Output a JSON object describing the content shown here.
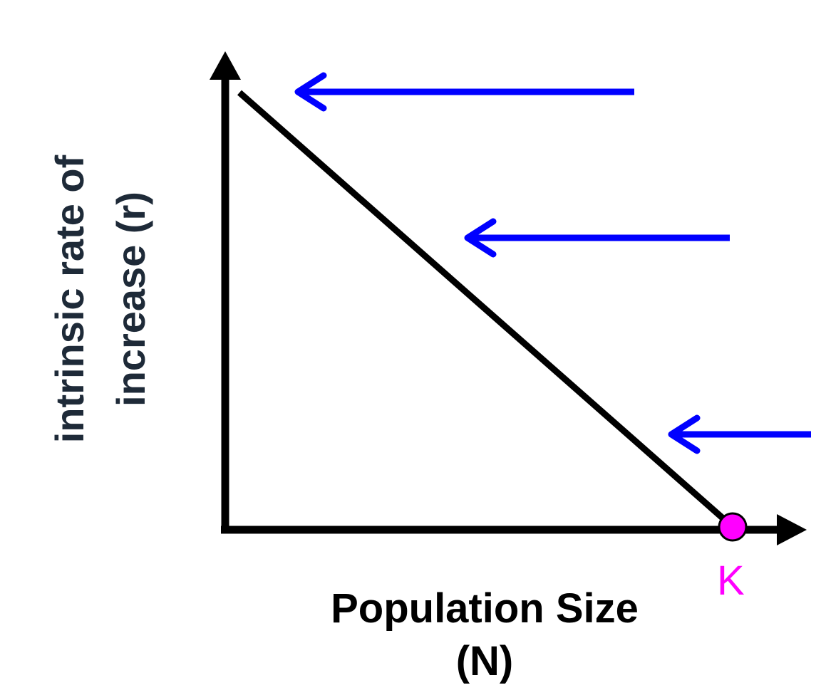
{
  "axes": {
    "y_label_line1": "intrinsic rate of",
    "y_label_line2": "increase (r)",
    "x_label_line1": "Population Size",
    "x_label_line2": "(N)"
  },
  "marker": {
    "label": "K",
    "color": "#ff00ff"
  },
  "colors": {
    "axis": "#000000",
    "line": "#000000",
    "arrows": "#0000ff",
    "ylabel": "#1e2a38"
  },
  "arrows": {
    "count": 3,
    "direction": "left"
  }
}
